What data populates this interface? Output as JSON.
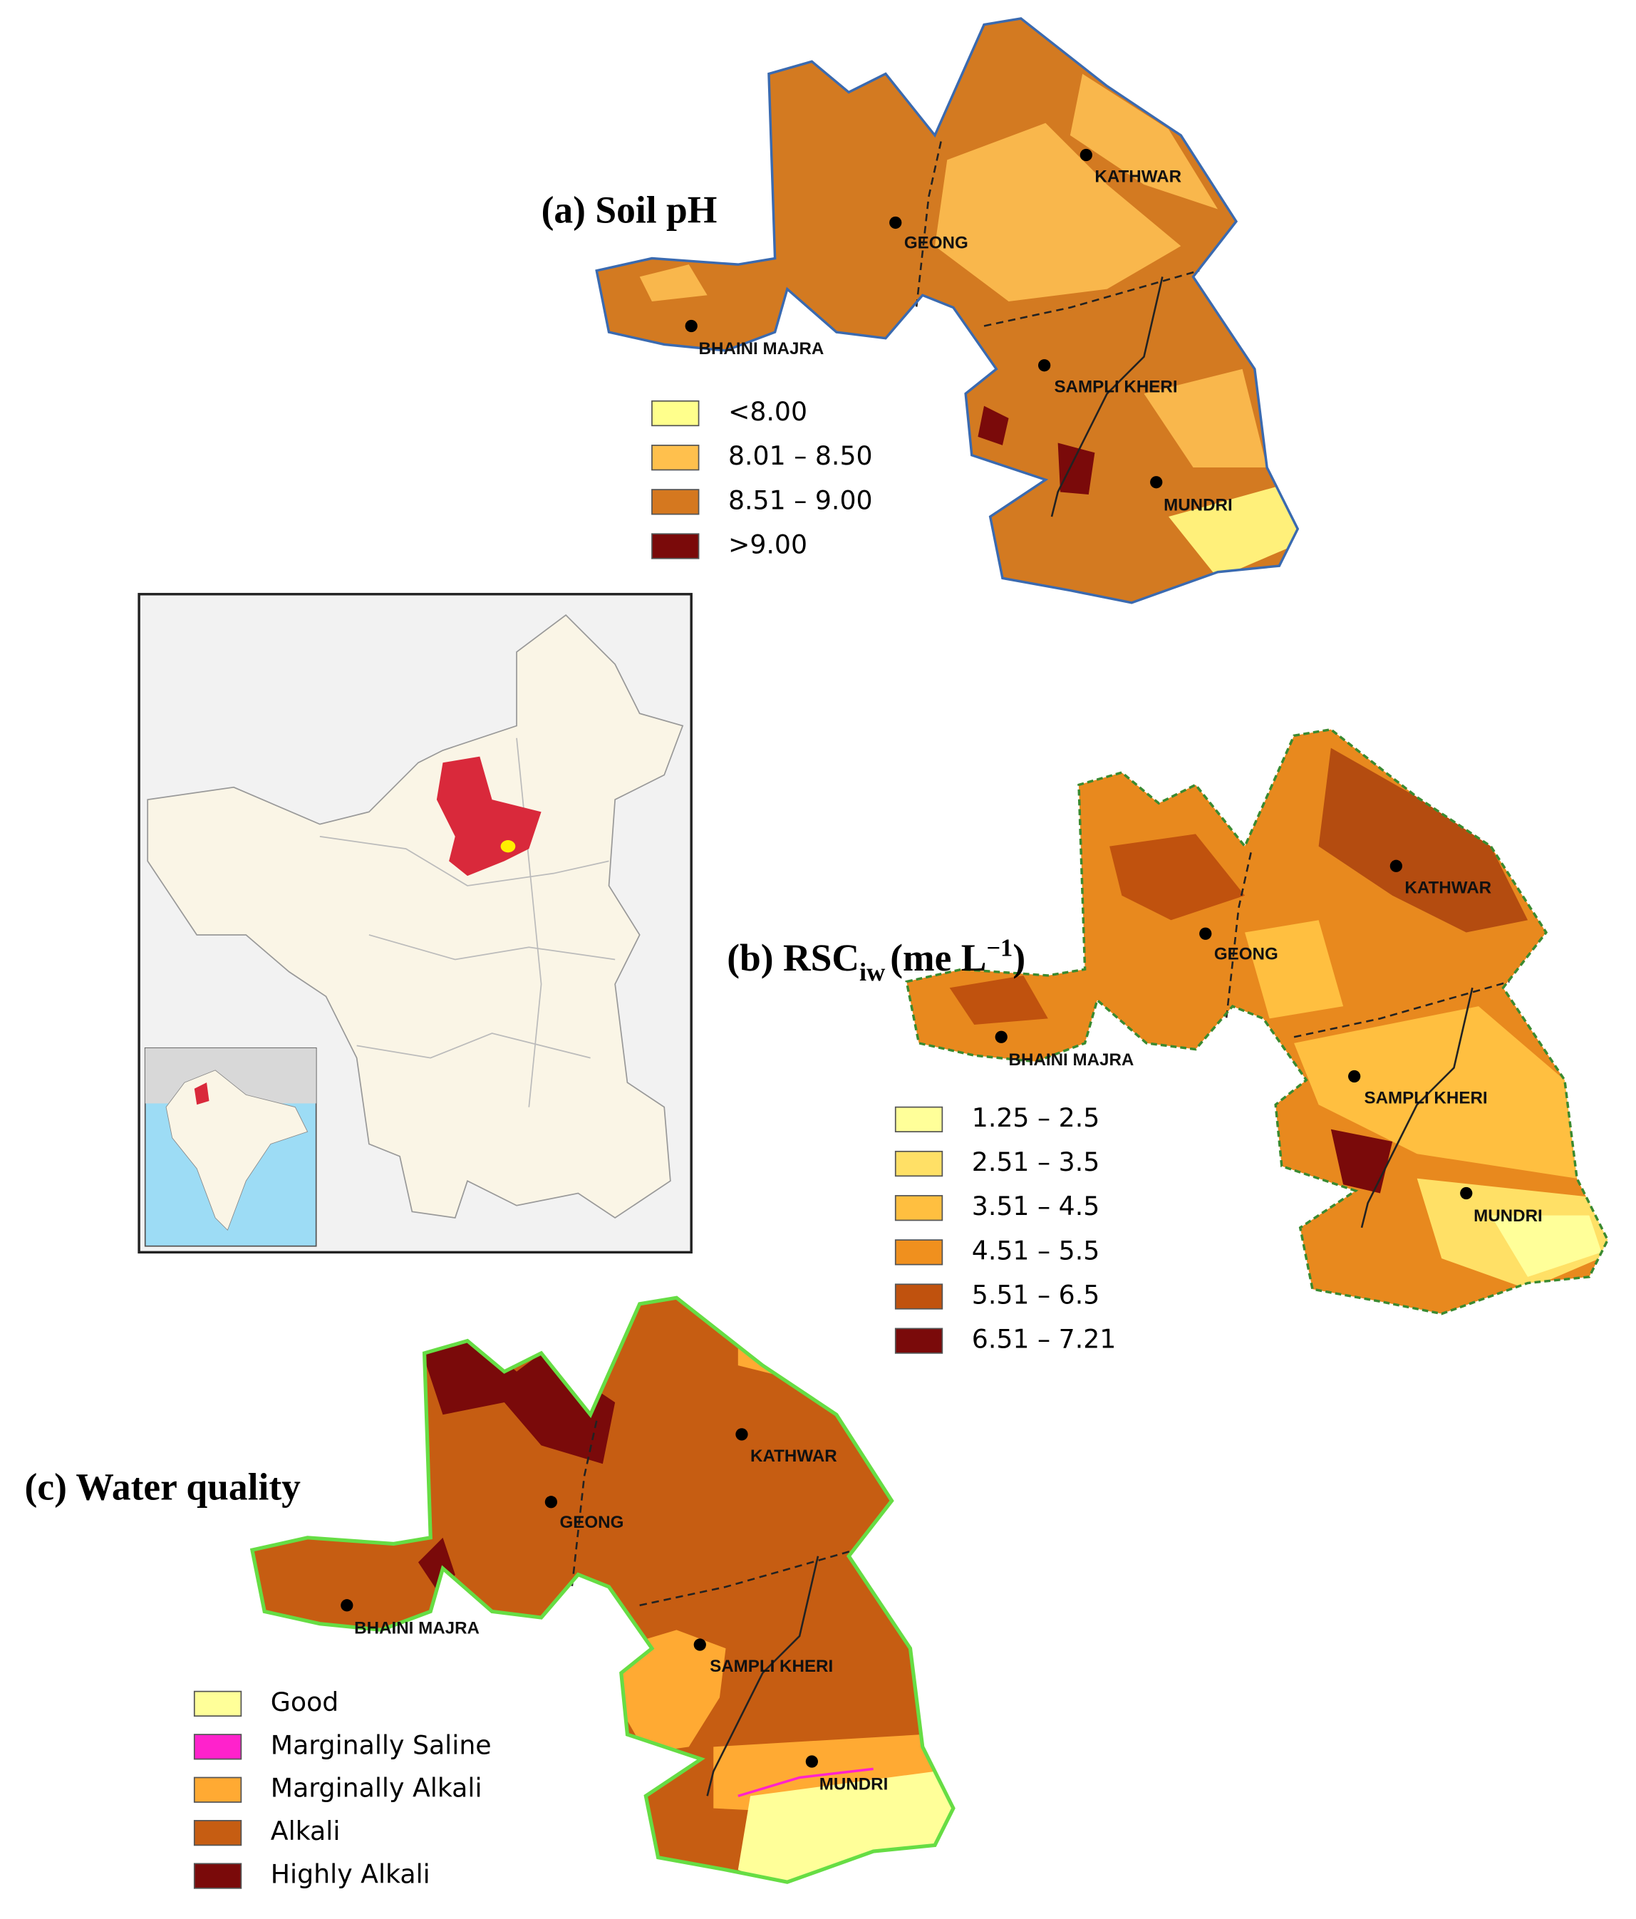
{
  "maps": [
    {
      "title": "(a) Soil pH",
      "places": [
        "GEONG",
        "KATHWAR",
        "BHAINI MAJRA",
        "SAMPLI KHERI",
        "MUNDRI"
      ],
      "legend": [
        {
          "label": "<8.00",
          "color": "#ffff8c"
        },
        {
          "label": "8.01 – 8.50",
          "color": "#ffc04d"
        },
        {
          "label": "8.51 – 9.00",
          "color": "#d5781f"
        },
        {
          "label": ">9.00",
          "color": "#7a0a0a"
        }
      ]
    },
    {
      "title": "(b) RSC",
      "title_sub": "iw",
      "title_rest": "(me L",
      "title_sup": "−1",
      "title_end": ")",
      "places": [
        "GEONG",
        "KATHWAR",
        "BHAINI MAJRA",
        "SAMPLI KHERI",
        "MUNDRI"
      ],
      "legend": [
        {
          "label": "1.25 – 2.5",
          "color": "#ffff99"
        },
        {
          "label": "2.51 – 3.5",
          "color": "#ffe066"
        },
        {
          "label": "3.51 – 4.5",
          "color": "#ffbf40"
        },
        {
          "label": "4.51 – 5.5",
          "color": "#f0901e"
        },
        {
          "label": "5.51 – 6.5",
          "color": "#c0520e"
        },
        {
          "label": "6.51 – 7.21",
          "color": "#7a0a0a"
        }
      ]
    },
    {
      "title": "(c) Water  quality",
      "places": [
        "GEONG",
        "KATHWAR",
        "BHAINI MAJRA",
        "SAMPLI KHERI",
        "MUNDRI"
      ],
      "legend": [
        {
          "label": "Good",
          "color": "#ffff99"
        },
        {
          "label": "Marginally Saline",
          "color": "#ff22cc"
        },
        {
          "label": "Marginally  Alkali",
          "color": "#ffaa33"
        },
        {
          "label": "Alkali",
          "color": "#c65d12"
        },
        {
          "label": "Highly Alkali",
          "color": "#7a0a0a"
        }
      ]
    }
  ]
}
